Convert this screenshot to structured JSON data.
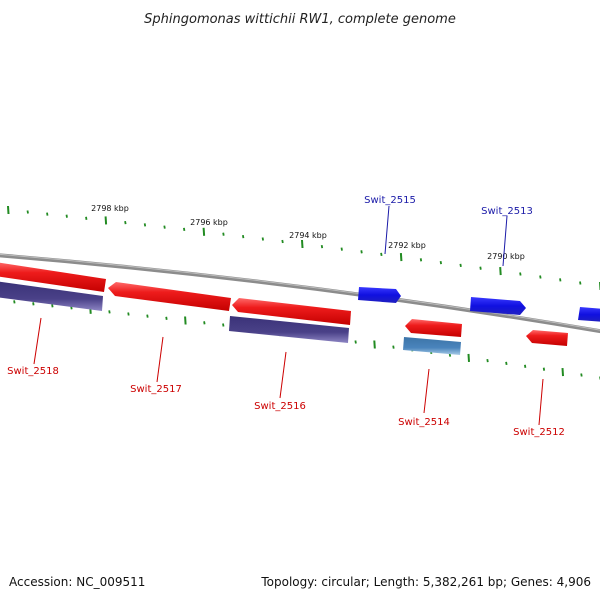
{
  "title": "Sphingomonas wittichii RW1, complete genome",
  "footer": {
    "accession": "Accession: NC_009511",
    "summary": "Topology: circular; Length: 5,382,261 bp; Genes: 4,906"
  },
  "colors": {
    "backbone": "#8a8a8a",
    "tick": "#228b22",
    "forward_gene": "#1e1ee6",
    "reverse_gene": "#ee1c1c",
    "dark_gene": "#4a4188",
    "light_gene": "#4a84bc",
    "forward_label": "#1a1aa8",
    "reverse_label": "#cc0000"
  },
  "scale_labels": [
    "2798 kbp",
    "2796 kbp",
    "2794 kbp",
    "2792 kbp",
    "2790 kbp"
  ],
  "gene_labels": [
    {
      "name": "Swit_2518",
      "strand": "reverse"
    },
    {
      "name": "Swit_2517",
      "strand": "reverse"
    },
    {
      "name": "Swit_2516",
      "strand": "reverse"
    },
    {
      "name": "Swit_2515",
      "strand": "forward"
    },
    {
      "name": "Swit_2514",
      "strand": "reverse"
    },
    {
      "name": "Swit_2513",
      "strand": "forward"
    },
    {
      "name": "Swit_2512",
      "strand": "reverse"
    }
  ]
}
